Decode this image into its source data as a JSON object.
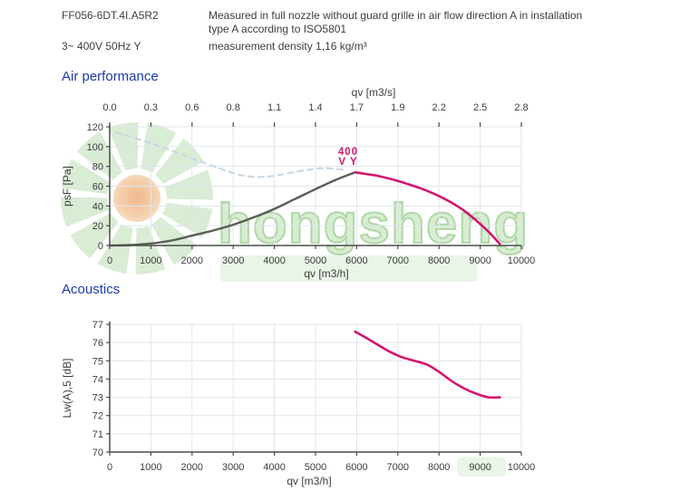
{
  "header": {
    "model": "FF056-6DT.4I.A5R2",
    "power": "3~ 400V 50Hz Y",
    "note_line1": "Measured in full nozzle without guard grille in air flow direction A in installation",
    "note_line2": "type A according to ISO5801",
    "density": "measurement density 1,16 kg/m³"
  },
  "watermark": {
    "text": "hongsheng"
  },
  "sections": {
    "air_title": "Air performance",
    "acoustics_title": "Acoustics"
  },
  "colors": {
    "title_blue": "#1d3aa8",
    "magenta": "#d4156f",
    "gray_curve": "#5a5e57",
    "dashed_blue": "#c6d7e4",
    "grid": "#dfe6ec",
    "axis": "#4c4c4c",
    "text": "#3d3d3d"
  },
  "chart_data": [
    {
      "name": "air_performance",
      "type": "line",
      "title": "Air performance",
      "xlabel": "qv [m3/h]",
      "xlabel_top": "qv [m3/s]",
      "ylabel": "psF [Pa]",
      "xlim": [
        0,
        10000
      ],
      "ylim": [
        0,
        120
      ],
      "grid": true,
      "x_ticks": [
        0,
        1000,
        2000,
        3000,
        4000,
        5000,
        6000,
        7000,
        8000,
        9000,
        10000
      ],
      "x_ticks_top_labels": [
        "0.0",
        "0.3",
        "0.6",
        "0.8",
        "1.1",
        "1.4",
        "1.7",
        "1.9",
        "2.2",
        "2.5",
        "2.8"
      ],
      "y_ticks": [
        0,
        20,
        40,
        60,
        80,
        100,
        120
      ],
      "annotation": {
        "color": "#d4156f",
        "items": [
          {
            "text": "400",
            "x": 5793,
            "y": 91.6
          },
          {
            "text": "V Y",
            "x": 5793,
            "y": 81.5
          }
        ]
      },
      "series": [
        {
          "name": "system-resistance-dashed",
          "color": "#c6d7e4",
          "dash": "6,5",
          "width": 2,
          "points": [
            [
              150,
              114.5
            ],
            [
              700,
              107.5
            ],
            [
              1200,
              100.5
            ],
            [
              1700,
              93
            ],
            [
              2200,
              85
            ],
            [
              2700,
              77.5
            ],
            [
              3100,
              72
            ],
            [
              3400,
              69.8
            ],
            [
              3700,
              69.3
            ],
            [
              4000,
              70.5
            ],
            [
              4400,
              73.5
            ],
            [
              4800,
              76.5
            ],
            [
              5100,
              78
            ],
            [
              5400,
              77.8
            ],
            [
              5750,
              76.2
            ]
          ]
        },
        {
          "name": "fan-curve-rising",
          "color": "#5a5e57",
          "dash": "",
          "width": 2.4,
          "points": [
            [
              0,
              0
            ],
            [
              500,
              0.5
            ],
            [
              1000,
              2
            ],
            [
              1500,
              5
            ],
            [
              2000,
              10
            ],
            [
              2500,
              15
            ],
            [
              3000,
              21
            ],
            [
              3500,
              28.5
            ],
            [
              4000,
              37
            ],
            [
              4500,
              47
            ],
            [
              5000,
              57
            ],
            [
              5500,
              66.5
            ],
            [
              5960,
              74
            ]
          ]
        },
        {
          "name": "fan-curve-400V",
          "color": "#d4156f",
          "dash": "",
          "width": 2.6,
          "points": [
            [
              5960,
              74
            ],
            [
              6200,
              72.5
            ],
            [
              6500,
              70.5
            ],
            [
              6800,
              67.5
            ],
            [
              7100,
              64
            ],
            [
              7400,
              60
            ],
            [
              7700,
              55.5
            ],
            [
              8000,
              50
            ],
            [
              8300,
              43.5
            ],
            [
              8600,
              35.5
            ],
            [
              8900,
              25.5
            ],
            [
              9200,
              14
            ],
            [
              9480,
              1.5
            ]
          ]
        }
      ]
    },
    {
      "name": "acoustics",
      "type": "line",
      "title": "Acoustics",
      "xlabel": "qv [m3/h]",
      "ylabel": "Lw(A),5 [dB]",
      "xlim": [
        0,
        10000
      ],
      "ylim": [
        70,
        77
      ],
      "grid": true,
      "x_ticks": [
        0,
        1000,
        2000,
        3000,
        4000,
        5000,
        6000,
        7000,
        8000,
        9000,
        10000
      ],
      "y_ticks": [
        70,
        71,
        72,
        73,
        74,
        75,
        76,
        77
      ],
      "series": [
        {
          "name": "sound-power-curve",
          "color": "#d4156f",
          "dash": "",
          "width": 2.6,
          "points": [
            [
              5960,
              76.6
            ],
            [
              6200,
              76.3
            ],
            [
              6500,
              75.9
            ],
            [
              6800,
              75.5
            ],
            [
              7100,
              75.2
            ],
            [
              7400,
              75.0
            ],
            [
              7700,
              74.8
            ],
            [
              8000,
              74.4
            ],
            [
              8300,
              73.9
            ],
            [
              8600,
              73.5
            ],
            [
              8900,
              73.2
            ],
            [
              9200,
              73.0
            ],
            [
              9480,
              73.0
            ]
          ]
        }
      ]
    }
  ]
}
